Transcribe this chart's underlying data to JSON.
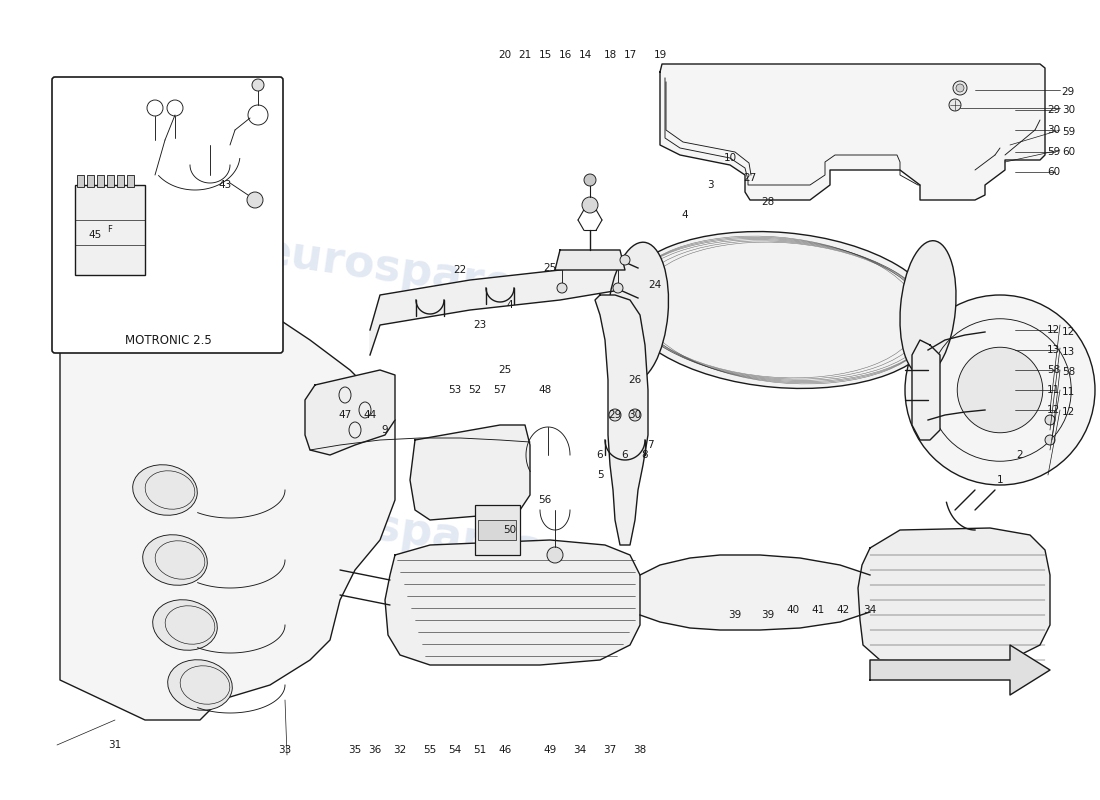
{
  "bg_color": "#ffffff",
  "line_color": "#1a1a1a",
  "watermark_text": "eurospares",
  "watermark_color": "#c8d4e8",
  "inset_label": "MOTRONIC 2.5",
  "figsize": [
    11.0,
    8.0
  ],
  "dpi": 100,
  "label_fontsize": 7.5,
  "lw_main": 1.0,
  "lw_thin": 0.65,
  "part_labels_right": [
    [
      1060,
      110,
      "29"
    ],
    [
      1060,
      130,
      "30"
    ],
    [
      1060,
      152,
      "59"
    ],
    [
      1060,
      172,
      "60"
    ],
    [
      1060,
      330,
      "12"
    ],
    [
      1060,
      350,
      "13"
    ],
    [
      1060,
      370,
      "58"
    ],
    [
      1060,
      390,
      "11"
    ],
    [
      1060,
      410,
      "12"
    ]
  ],
  "part_labels_bottom": [
    [
      115,
      745,
      "31"
    ],
    [
      285,
      750,
      "33"
    ],
    [
      355,
      750,
      "35"
    ],
    [
      375,
      750,
      "36"
    ],
    [
      400,
      750,
      "32"
    ],
    [
      430,
      750,
      "55"
    ],
    [
      455,
      750,
      "54"
    ],
    [
      480,
      750,
      "51"
    ],
    [
      505,
      750,
      "46"
    ],
    [
      550,
      750,
      "49"
    ],
    [
      580,
      750,
      "34"
    ],
    [
      610,
      750,
      "37"
    ],
    [
      640,
      750,
      "38"
    ]
  ],
  "part_labels_top": [
    [
      505,
      55,
      "20"
    ],
    [
      525,
      55,
      "21"
    ],
    [
      545,
      55,
      "15"
    ],
    [
      565,
      55,
      "16"
    ],
    [
      585,
      55,
      "14"
    ],
    [
      610,
      55,
      "18"
    ],
    [
      630,
      55,
      "17"
    ],
    [
      660,
      55,
      "19"
    ]
  ],
  "part_labels_center": [
    [
      385,
      430,
      "9"
    ],
    [
      345,
      415,
      "47"
    ],
    [
      370,
      415,
      "44"
    ],
    [
      455,
      390,
      "53"
    ],
    [
      475,
      390,
      "52"
    ],
    [
      500,
      390,
      "57"
    ],
    [
      545,
      390,
      "48"
    ],
    [
      545,
      500,
      "56"
    ],
    [
      510,
      530,
      "50"
    ],
    [
      615,
      415,
      "29"
    ],
    [
      635,
      415,
      "30"
    ],
    [
      600,
      455,
      "6"
    ],
    [
      625,
      455,
      "6"
    ],
    [
      600,
      475,
      "5"
    ],
    [
      645,
      455,
      "8"
    ],
    [
      650,
      445,
      "7"
    ],
    [
      635,
      380,
      "26"
    ],
    [
      505,
      370,
      "25"
    ],
    [
      480,
      325,
      "23"
    ],
    [
      460,
      270,
      "22"
    ],
    [
      510,
      305,
      "4"
    ],
    [
      550,
      268,
      "25"
    ],
    [
      655,
      285,
      "24"
    ],
    [
      685,
      215,
      "4"
    ],
    [
      710,
      185,
      "3"
    ],
    [
      730,
      158,
      "10"
    ],
    [
      750,
      178,
      "27"
    ],
    [
      768,
      202,
      "28"
    ],
    [
      735,
      615,
      "39"
    ],
    [
      768,
      615,
      "39"
    ],
    [
      793,
      610,
      "40"
    ],
    [
      818,
      610,
      "41"
    ],
    [
      843,
      610,
      "42"
    ],
    [
      870,
      610,
      "34"
    ],
    [
      1000,
      480,
      "1"
    ],
    [
      1020,
      455,
      "2"
    ]
  ]
}
